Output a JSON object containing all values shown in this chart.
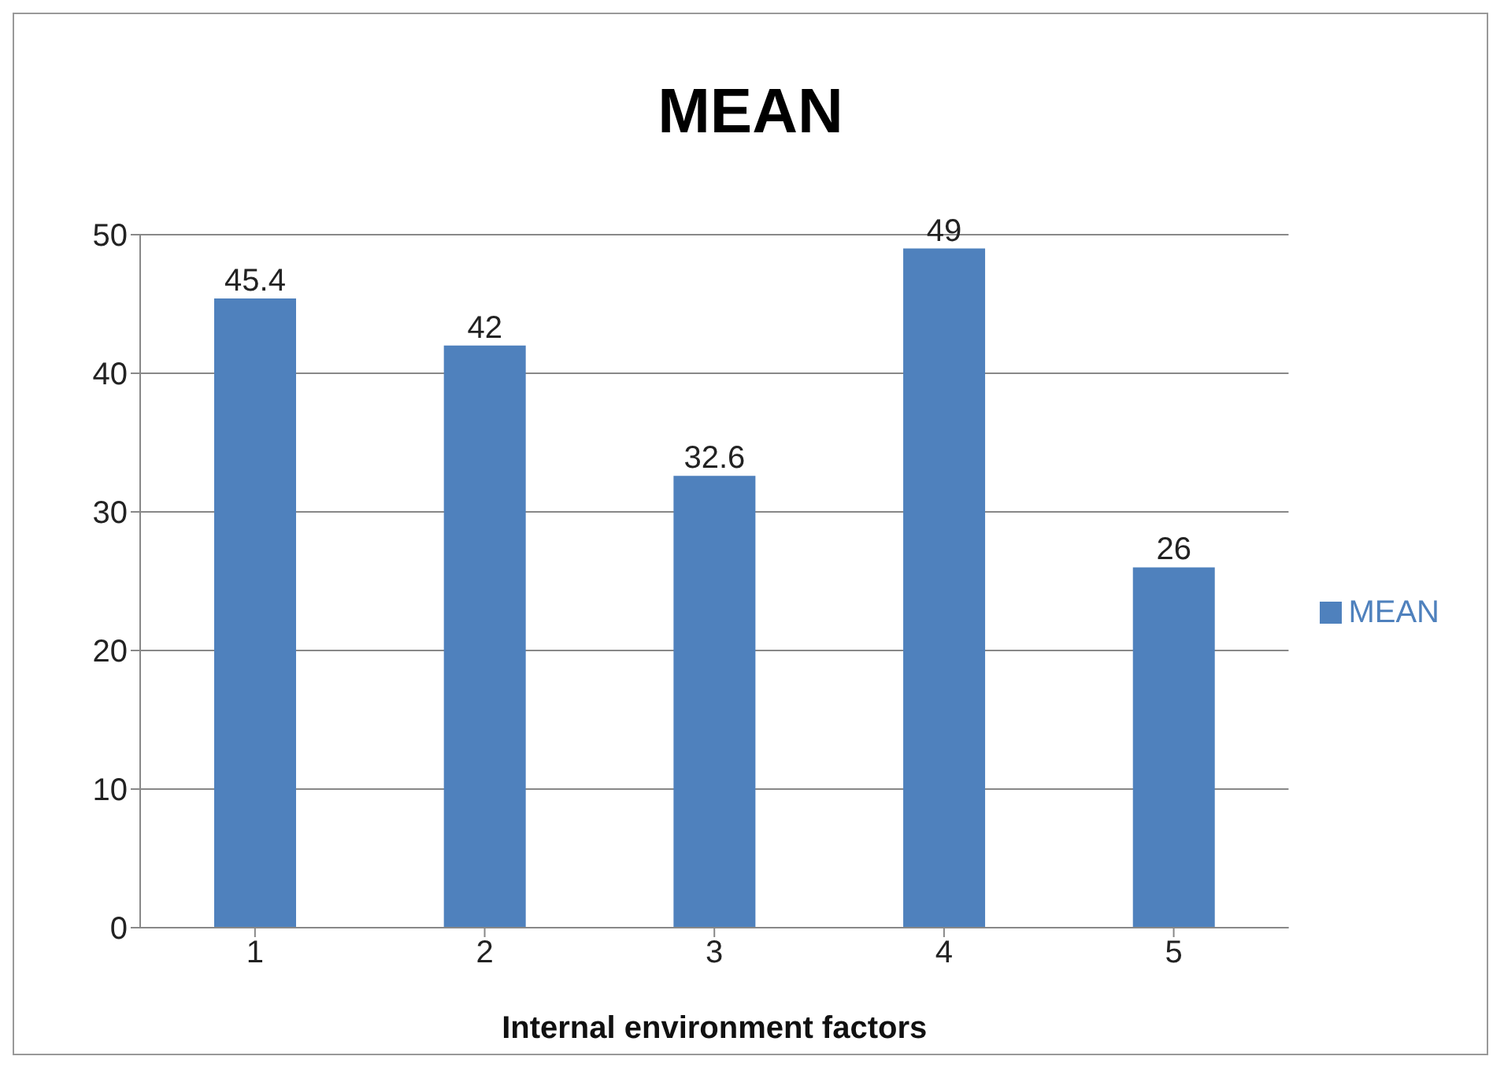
{
  "chart_data": {
    "type": "bar",
    "title": "MEAN",
    "xlabel": "Internal environment factors",
    "categories": [
      "1",
      "2",
      "3",
      "4",
      "5"
    ],
    "series": [
      {
        "name": "MEAN",
        "color": "#4f81bd",
        "values": [
          45.4,
          42,
          32.6,
          49,
          26
        ]
      }
    ],
    "ylim": [
      0,
      50
    ],
    "yticks": [
      0,
      10,
      20,
      30,
      40,
      50
    ],
    "grid": "y",
    "legend": "right",
    "data_labels": true
  }
}
